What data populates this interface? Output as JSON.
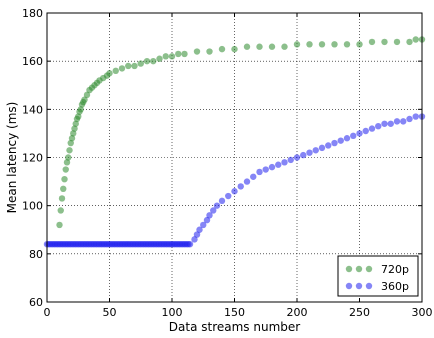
{
  "chart_data": {
    "type": "scatter",
    "xlabel": "Data streams number",
    "ylabel": "Mean latency (ms)",
    "xlim": [
      0,
      300
    ],
    "ylim": [
      60,
      180
    ],
    "xticks": [
      0,
      50,
      100,
      150,
      200,
      250,
      300
    ],
    "yticks": [
      60,
      80,
      100,
      120,
      140,
      160,
      180
    ],
    "grid": true,
    "legend_position": "bottom-right",
    "series": [
      {
        "name": "720p",
        "color": "#2e8b2e",
        "points": [
          [
            10,
            92
          ],
          [
            11,
            98
          ],
          [
            12,
            103
          ],
          [
            13,
            107
          ],
          [
            14,
            111
          ],
          [
            15,
            115
          ],
          [
            16,
            118
          ],
          [
            17,
            120
          ],
          [
            18,
            123
          ],
          [
            19,
            126
          ],
          [
            20,
            128
          ],
          [
            21,
            130
          ],
          [
            22,
            132
          ],
          [
            23,
            134
          ],
          [
            24,
            136
          ],
          [
            25,
            137
          ],
          [
            26,
            139
          ],
          [
            27,
            140
          ],
          [
            28,
            142
          ],
          [
            29,
            143
          ],
          [
            30,
            144
          ],
          [
            32,
            146
          ],
          [
            34,
            148
          ],
          [
            36,
            149
          ],
          [
            38,
            150
          ],
          [
            40,
            151
          ],
          [
            42,
            152
          ],
          [
            45,
            153
          ],
          [
            48,
            154
          ],
          [
            50,
            155
          ],
          [
            55,
            156
          ],
          [
            60,
            157
          ],
          [
            65,
            158
          ],
          [
            70,
            158
          ],
          [
            75,
            159
          ],
          [
            80,
            160
          ],
          [
            85,
            160
          ],
          [
            90,
            161
          ],
          [
            95,
            162
          ],
          [
            100,
            162
          ],
          [
            105,
            163
          ],
          [
            110,
            163
          ],
          [
            120,
            164
          ],
          [
            130,
            164
          ],
          [
            140,
            165
          ],
          [
            150,
            165
          ],
          [
            160,
            166
          ],
          [
            170,
            166
          ],
          [
            180,
            166
          ],
          [
            190,
            166
          ],
          [
            200,
            167
          ],
          [
            210,
            167
          ],
          [
            220,
            167
          ],
          [
            230,
            167
          ],
          [
            240,
            167
          ],
          [
            250,
            167
          ],
          [
            260,
            168
          ],
          [
            270,
            168
          ],
          [
            280,
            168
          ],
          [
            290,
            168
          ],
          [
            295,
            169
          ],
          [
            300,
            169
          ]
        ]
      },
      {
        "name": "360p",
        "color": "#2020ee",
        "points": [
          [
            0,
            84
          ],
          [
            10,
            84
          ],
          [
            20,
            84
          ],
          [
            30,
            84
          ],
          [
            40,
            84
          ],
          [
            50,
            84
          ],
          [
            60,
            84
          ],
          [
            70,
            84
          ],
          [
            80,
            84
          ],
          [
            90,
            84
          ],
          [
            100,
            84
          ],
          [
            110,
            84
          ],
          [
            115,
            84
          ],
          [
            118,
            86
          ],
          [
            120,
            88
          ],
          [
            122,
            90
          ],
          [
            125,
            92
          ],
          [
            128,
            94
          ],
          [
            130,
            96
          ],
          [
            133,
            98
          ],
          [
            136,
            100
          ],
          [
            140,
            102
          ],
          [
            145,
            104
          ],
          [
            150,
            106
          ],
          [
            155,
            108
          ],
          [
            160,
            110
          ],
          [
            165,
            112
          ],
          [
            170,
            114
          ],
          [
            175,
            115
          ],
          [
            180,
            116
          ],
          [
            185,
            117
          ],
          [
            190,
            118
          ],
          [
            195,
            119
          ],
          [
            200,
            120
          ],
          [
            205,
            121
          ],
          [
            210,
            122
          ],
          [
            215,
            123
          ],
          [
            220,
            124
          ],
          [
            225,
            125
          ],
          [
            230,
            126
          ],
          [
            235,
            127
          ],
          [
            240,
            128
          ],
          [
            245,
            129
          ],
          [
            250,
            130
          ],
          [
            255,
            131
          ],
          [
            260,
            132
          ],
          [
            265,
            133
          ],
          [
            270,
            134
          ],
          [
            275,
            134
          ],
          [
            280,
            135
          ],
          [
            285,
            135
          ],
          [
            290,
            136
          ],
          [
            295,
            137
          ],
          [
            300,
            137
          ]
        ]
      }
    ]
  }
}
